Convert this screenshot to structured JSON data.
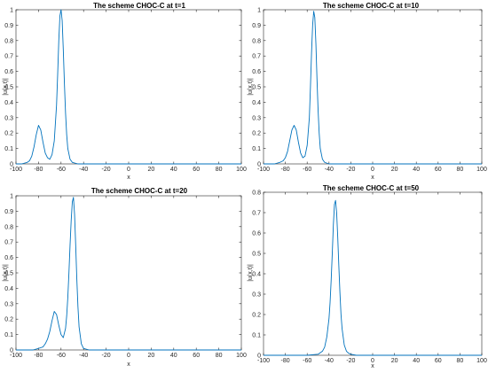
{
  "line_color": "#0072BD",
  "axis_color": "#262626",
  "chart_data": [
    {
      "type": "line",
      "title": "The scheme CHOC-C at t=1",
      "xlabel": "x",
      "ylabel": "|u(x,t)|",
      "xlim": [
        -100,
        100
      ],
      "ylim": [
        0,
        1
      ],
      "xticks": [
        -100,
        -80,
        -60,
        -40,
        -20,
        0,
        20,
        40,
        60,
        80,
        100
      ],
      "yticks": [
        0,
        0.1,
        0.2,
        0.3,
        0.4,
        0.5,
        0.6,
        0.7,
        0.8,
        0.9,
        1
      ],
      "grid": false,
      "series": [
        {
          "x": [
            -100,
            -95,
            -90,
            -88,
            -86,
            -84,
            -82,
            -80,
            -78,
            -76,
            -74,
            -72,
            -70,
            -68,
            -66,
            -64,
            -63,
            -62,
            -61,
            -60,
            -59,
            -58,
            -57,
            -56,
            -55,
            -54,
            -52,
            -50,
            -45,
            -40,
            -20,
            0,
            20,
            40,
            60,
            80,
            100
          ],
          "y": [
            0,
            0,
            0.01,
            0.02,
            0.05,
            0.11,
            0.19,
            0.25,
            0.22,
            0.14,
            0.07,
            0.04,
            0.03,
            0.06,
            0.15,
            0.38,
            0.58,
            0.8,
            0.96,
            1.0,
            0.93,
            0.74,
            0.52,
            0.33,
            0.19,
            0.1,
            0.03,
            0.01,
            0,
            0,
            0,
            0,
            0,
            0,
            0,
            0,
            0
          ]
        }
      ]
    },
    {
      "type": "line",
      "title": "The scheme CHOC-C at t=10",
      "xlabel": "x",
      "ylabel": "|u(x,t)|",
      "xlim": [
        -100,
        100
      ],
      "ylim": [
        0,
        1
      ],
      "xticks": [
        -100,
        -80,
        -60,
        -40,
        -20,
        0,
        20,
        40,
        60,
        80,
        100
      ],
      "yticks": [
        0,
        0.1,
        0.2,
        0.3,
        0.4,
        0.5,
        0.6,
        0.7,
        0.8,
        0.9,
        1
      ],
      "grid": false,
      "series": [
        {
          "x": [
            -100,
            -90,
            -85,
            -82,
            -80,
            -78,
            -76,
            -74,
            -72,
            -70,
            -68,
            -66,
            -64,
            -62,
            -60,
            -58,
            -57,
            -56,
            -55,
            -54,
            -53,
            -52,
            -51,
            -50,
            -49,
            -48,
            -46,
            -44,
            -40,
            -30,
            -20,
            0,
            20,
            40,
            60,
            80,
            100
          ],
          "y": [
            0,
            0,
            0.01,
            0.02,
            0.04,
            0.08,
            0.15,
            0.22,
            0.25,
            0.22,
            0.14,
            0.07,
            0.04,
            0.05,
            0.12,
            0.3,
            0.5,
            0.72,
            0.9,
            0.99,
            0.95,
            0.78,
            0.55,
            0.35,
            0.2,
            0.1,
            0.03,
            0.01,
            0,
            0,
            0,
            0,
            0,
            0,
            0,
            0,
            0
          ]
        }
      ]
    },
    {
      "type": "line",
      "title": "The scheme CHOC-C at t=20",
      "xlabel": "x",
      "ylabel": "|u(x,t)|",
      "xlim": [
        -100,
        100
      ],
      "ylim": [
        0,
        1
      ],
      "xticks": [
        -100,
        -80,
        -60,
        -40,
        -20,
        0,
        20,
        40,
        60,
        80,
        100
      ],
      "yticks": [
        0,
        0.1,
        0.2,
        0.3,
        0.4,
        0.5,
        0.6,
        0.7,
        0.8,
        0.9,
        1
      ],
      "grid": false,
      "series": [
        {
          "x": [
            -100,
            -85,
            -80,
            -76,
            -74,
            -72,
            -70,
            -68,
            -66,
            -64,
            -62,
            -60,
            -58,
            -56,
            -55,
            -54,
            -53,
            -52,
            -51,
            -50,
            -49,
            -48,
            -47,
            -46,
            -45,
            -44,
            -42,
            -40,
            -35,
            -20,
            0,
            20,
            40,
            60,
            80,
            100
          ],
          "y": [
            0,
            0,
            0.01,
            0.02,
            0.04,
            0.07,
            0.12,
            0.19,
            0.25,
            0.23,
            0.16,
            0.1,
            0.08,
            0.14,
            0.22,
            0.34,
            0.5,
            0.68,
            0.84,
            0.96,
            0.99,
            0.88,
            0.68,
            0.46,
            0.28,
            0.15,
            0.04,
            0.01,
            0,
            0,
            0,
            0,
            0,
            0,
            0,
            0
          ]
        }
      ]
    },
    {
      "type": "line",
      "title": "The scheme CHOC-C at t=50",
      "xlabel": "x",
      "ylabel": "|u(x,t)|",
      "xlim": [
        -100,
        100
      ],
      "ylim": [
        0,
        0.8
      ],
      "xticks": [
        -100,
        -80,
        -60,
        -40,
        -20,
        0,
        20,
        40,
        60,
        80,
        100
      ],
      "yticks": [
        0,
        0.1,
        0.2,
        0.3,
        0.4,
        0.5,
        0.6,
        0.7,
        0.8
      ],
      "grid": false,
      "series": [
        {
          "x": [
            -100,
            -60,
            -50,
            -46,
            -44,
            -42,
            -40,
            -39,
            -38,
            -37,
            -36,
            -35,
            -34,
            -33,
            -32,
            -31,
            -30,
            -29,
            -28,
            -26,
            -24,
            -22,
            -20,
            -15,
            0,
            20,
            40,
            60,
            80,
            100
          ],
          "y": [
            0,
            0,
            0.005,
            0.02,
            0.04,
            0.09,
            0.18,
            0.26,
            0.37,
            0.5,
            0.64,
            0.74,
            0.76,
            0.7,
            0.58,
            0.44,
            0.31,
            0.2,
            0.13,
            0.05,
            0.02,
            0.01,
            0.005,
            0,
            0,
            0,
            0,
            0,
            0,
            0
          ]
        }
      ]
    }
  ]
}
